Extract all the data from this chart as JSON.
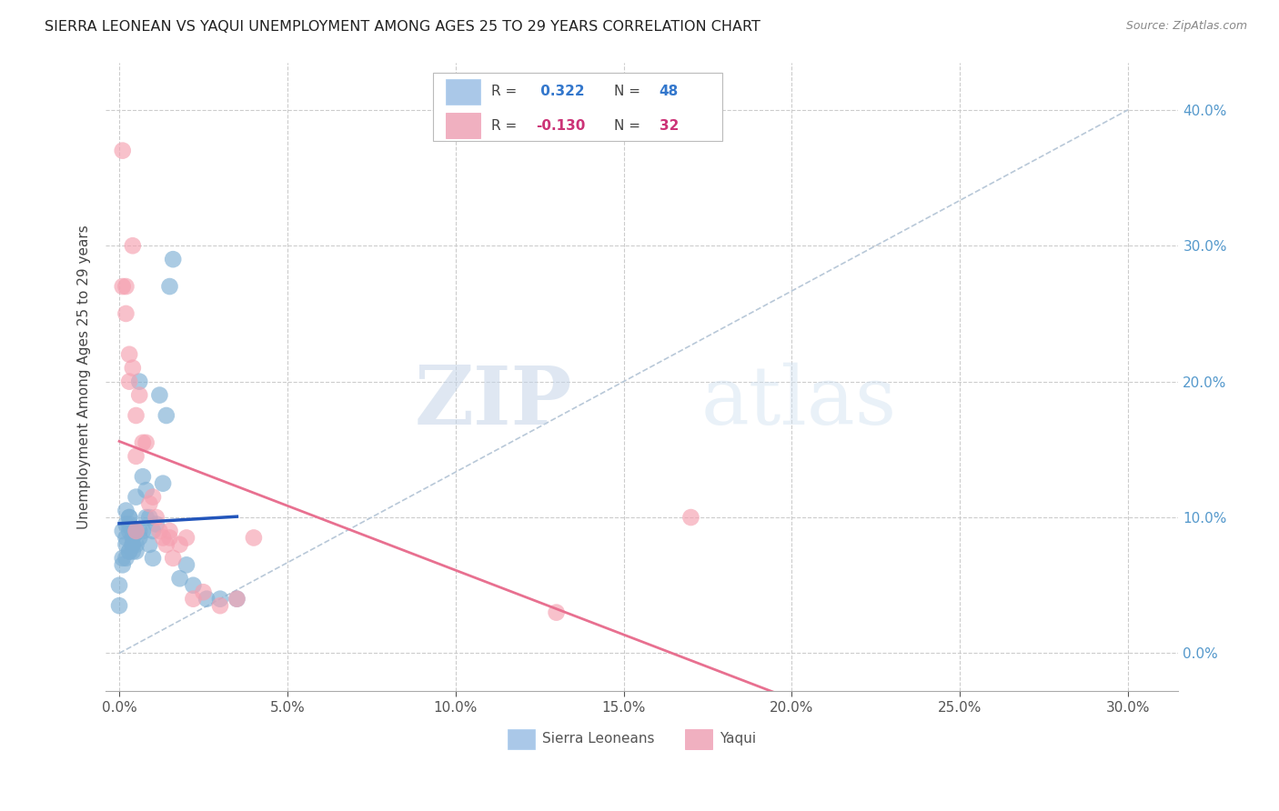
{
  "title": "SIERRA LEONEAN VS YAQUI UNEMPLOYMENT AMONG AGES 25 TO 29 YEARS CORRELATION CHART",
  "source": "Source: ZipAtlas.com",
  "xlabel_vals": [
    0.0,
    0.05,
    0.1,
    0.15,
    0.2,
    0.25,
    0.3
  ],
  "ylabel_vals": [
    0.0,
    0.1,
    0.2,
    0.3,
    0.4
  ],
  "xlim": [
    -0.004,
    0.315
  ],
  "ylim": [
    -0.028,
    0.435
  ],
  "ylabel": "Unemployment Among Ages 25 to 29 years",
  "r_sl": 0.322,
  "n_sl": 48,
  "r_yq": -0.13,
  "n_yq": 32,
  "sl_color": "#7eb0d5",
  "yq_color": "#f5a0b0",
  "sl_line_color": "#2255bb",
  "yq_line_color": "#e87090",
  "ref_line_color": "#b8c8d8",
  "background": "#ffffff",
  "grid_color": "#cccccc",
  "sierra_leonean_x": [
    0.0,
    0.0,
    0.001,
    0.001,
    0.001,
    0.002,
    0.002,
    0.002,
    0.002,
    0.002,
    0.003,
    0.003,
    0.003,
    0.003,
    0.003,
    0.003,
    0.004,
    0.004,
    0.004,
    0.004,
    0.004,
    0.005,
    0.005,
    0.005,
    0.005,
    0.006,
    0.006,
    0.006,
    0.007,
    0.007,
    0.008,
    0.008,
    0.009,
    0.009,
    0.01,
    0.01,
    0.011,
    0.012,
    0.013,
    0.014,
    0.015,
    0.016,
    0.018,
    0.02,
    0.022,
    0.026,
    0.03,
    0.035
  ],
  "sierra_leonean_y": [
    0.05,
    0.035,
    0.07,
    0.09,
    0.065,
    0.07,
    0.085,
    0.095,
    0.105,
    0.08,
    0.075,
    0.09,
    0.1,
    0.1,
    0.075,
    0.095,
    0.08,
    0.085,
    0.075,
    0.08,
    0.09,
    0.08,
    0.09,
    0.115,
    0.075,
    0.09,
    0.085,
    0.2,
    0.13,
    0.09,
    0.1,
    0.12,
    0.08,
    0.1,
    0.09,
    0.07,
    0.095,
    0.19,
    0.125,
    0.175,
    0.27,
    0.29,
    0.055,
    0.065,
    0.05,
    0.04,
    0.04,
    0.04
  ],
  "yaqui_x": [
    0.001,
    0.001,
    0.002,
    0.002,
    0.003,
    0.003,
    0.004,
    0.004,
    0.005,
    0.005,
    0.005,
    0.006,
    0.007,
    0.008,
    0.009,
    0.01,
    0.011,
    0.012,
    0.013,
    0.014,
    0.015,
    0.015,
    0.016,
    0.018,
    0.02,
    0.022,
    0.025,
    0.03,
    0.035,
    0.04,
    0.13,
    0.17
  ],
  "yaqui_y": [
    0.37,
    0.27,
    0.27,
    0.25,
    0.22,
    0.2,
    0.21,
    0.3,
    0.175,
    0.145,
    0.09,
    0.19,
    0.155,
    0.155,
    0.11,
    0.115,
    0.1,
    0.09,
    0.085,
    0.08,
    0.085,
    0.09,
    0.07,
    0.08,
    0.085,
    0.04,
    0.045,
    0.035,
    0.04,
    0.085,
    0.03,
    0.1
  ],
  "watermark_zip": "ZIP",
  "watermark_atlas": "atlas",
  "legend_box_color_sl": "#aac8e8",
  "legend_box_color_yq": "#f0b0c0",
  "legend_r_color_sl": "#3377cc",
  "legend_r_color_yq": "#cc3377",
  "sl_trend_x": [
    0.0,
    0.035
  ],
  "yq_trend_x": [
    0.0,
    0.3
  ]
}
